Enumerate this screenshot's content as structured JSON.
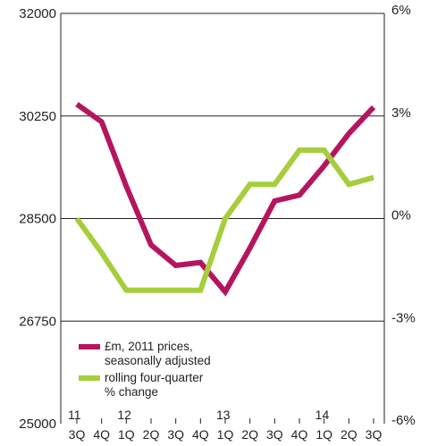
{
  "chart_data": {
    "type": "line",
    "categories": [
      "3Q",
      "4Q",
      "1Q",
      "2Q",
      "3Q",
      "4Q",
      "1Q",
      "2Q",
      "3Q",
      "4Q",
      "1Q",
      "2Q",
      "3Q"
    ],
    "year_labels": [
      {
        "label": "11",
        "index": 0
      },
      {
        "label": "12",
        "index": 2
      },
      {
        "label": "13",
        "index": 6
      },
      {
        "label": "14",
        "index": 10
      }
    ],
    "ylim_left": [
      25000,
      32000
    ],
    "ylim_right": [
      -6,
      6
    ],
    "y_ticks_left": [
      "32000",
      "30250",
      "28500",
      "26750",
      "25000"
    ],
    "y_ticks_right": [
      "6%",
      "3%",
      "0%",
      "-3%",
      "-6%"
    ],
    "gridlines_left": [
      32000,
      30250,
      28500,
      26750
    ],
    "series": [
      {
        "name": "£m, 2011 prices, seasonally adjusted",
        "name_lines": [
          "£m, 2011 prices,",
          "seasonally adjusted"
        ],
        "axis": "left",
        "color": "#b5155f",
        "values": [
          30450,
          30150,
          29050,
          28050,
          27700,
          27750,
          27250,
          28000,
          28800,
          28900,
          29400,
          29950,
          30400
        ]
      },
      {
        "name": "rolling four-quarter % change",
        "name_lines": [
          "rolling four-quarter",
          "% change"
        ],
        "axis": "right",
        "color": "#a6cd3c",
        "values": [
          0.0,
          -1.0,
          -2.1,
          -2.1,
          -2.1,
          -2.1,
          0.0,
          1.0,
          1.0,
          2.0,
          2.0,
          1.0,
          1.2
        ]
      }
    ]
  }
}
